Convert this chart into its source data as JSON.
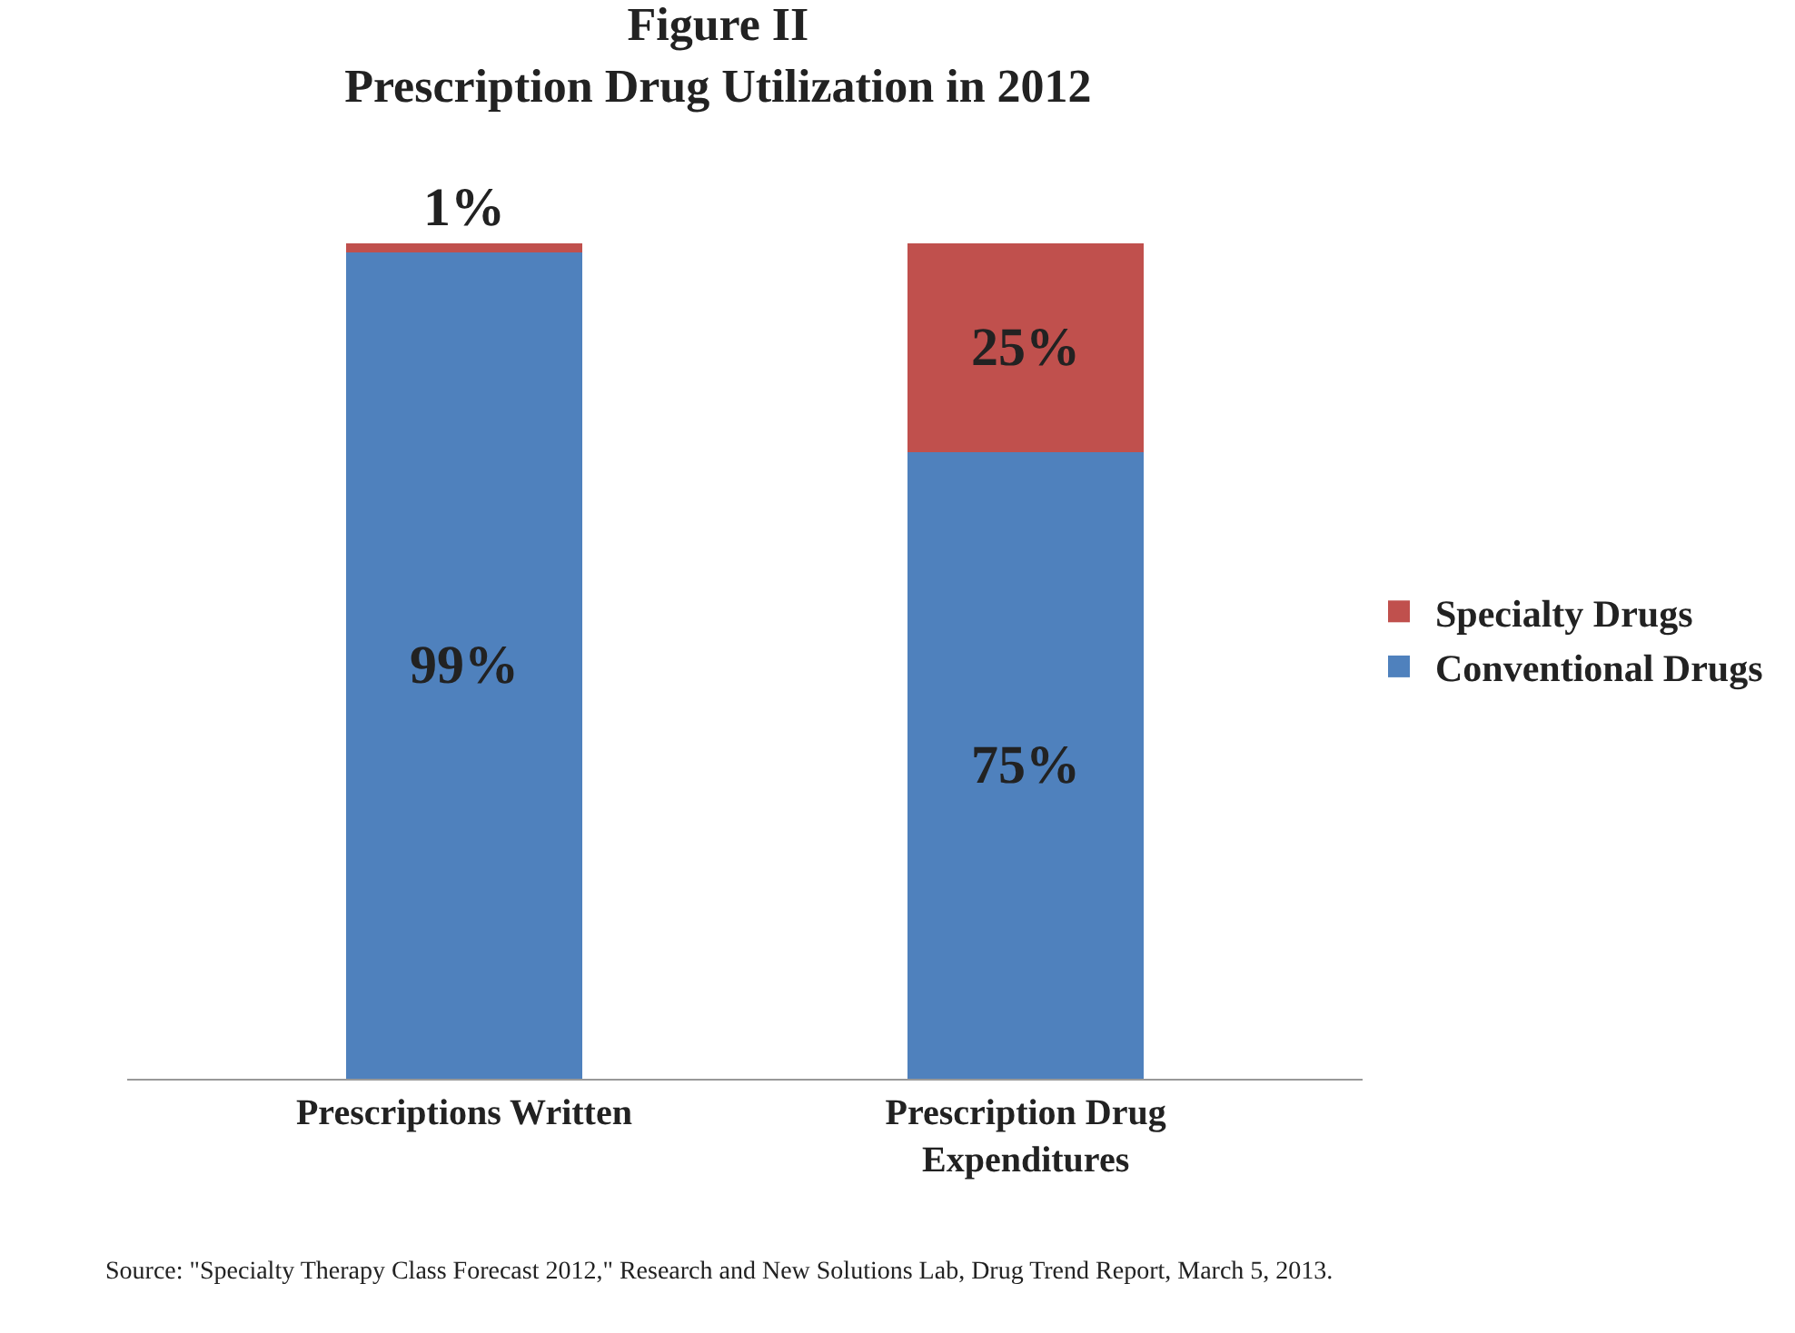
{
  "chart_data": {
    "type": "bar",
    "title": "Figure II",
    "subtitle": "Prescription Drug Utilization in 2012",
    "categories": [
      "Prescriptions Written",
      "Prescription Drug Expenditures"
    ],
    "stacked": true,
    "series": [
      {
        "name": "Conventional Drugs",
        "color": "#4f81bd",
        "values": [
          99,
          75
        ],
        "value_labels": [
          "99%",
          "75%"
        ]
      },
      {
        "name": "Specialty Drugs",
        "color": "#c0504d",
        "values": [
          1,
          25
        ],
        "value_labels": [
          "1%",
          "25%"
        ]
      }
    ],
    "legend": "right",
    "grid": false,
    "annotations": [
      "Source: \"Specialty Therapy Class Forecast 2012,\" Research and New Solutions Lab, Drug Trend Report, March 5, 2013."
    ]
  }
}
